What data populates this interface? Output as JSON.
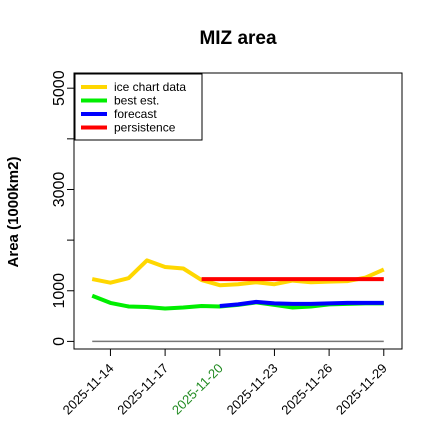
{
  "chart_data": {
    "type": "line",
    "title": "MIZ area",
    "xlabel": "",
    "ylabel": "Area (1000km2)",
    "ylim": [
      -150,
      5300
    ],
    "yticks": [
      0,
      1000,
      3000,
      5000
    ],
    "y_minor_ticks": [
      2000,
      4000
    ],
    "x_start": "2025-11-13",
    "x_dates": [
      "2025-11-13",
      "2025-11-14",
      "2025-11-15",
      "2025-11-16",
      "2025-11-17",
      "2025-11-18",
      "2025-11-19",
      "2025-11-20",
      "2025-11-21",
      "2025-11-22",
      "2025-11-23",
      "2025-11-24",
      "2025-11-25",
      "2025-11-26",
      "2025-11-27",
      "2025-11-28",
      "2025-11-29"
    ],
    "xlim": [
      "2025-11-12",
      "2025-11-30"
    ],
    "xtick_labels": [
      "2025-11-14",
      "2025-11-17",
      "2025-11-20",
      "2025-11-23",
      "2025-11-26",
      "2025-11-29"
    ],
    "highlight_tick": "2025-11-20",
    "highlight_color": "#228b22",
    "grid": false,
    "legend_position": "top-left",
    "baseline": 0,
    "series": [
      {
        "name": "ice chart data",
        "color": "#ffd700",
        "x": [
          "2025-11-13",
          "2025-11-14",
          "2025-11-15",
          "2025-11-16",
          "2025-11-17",
          "2025-11-18",
          "2025-11-19",
          "2025-11-20",
          "2025-11-21",
          "2025-11-22",
          "2025-11-23",
          "2025-11-24",
          "2025-11-25",
          "2025-11-26",
          "2025-11-27",
          "2025-11-28",
          "2025-11-29"
        ],
        "values": [
          1230,
          1160,
          1250,
          1600,
          1470,
          1440,
          1210,
          1110,
          1130,
          1170,
          1130,
          1200,
          1170,
          1180,
          1190,
          1260,
          1420
        ]
      },
      {
        "name": "best est.",
        "color": "#00ee00",
        "x": [
          "2025-11-13",
          "2025-11-14",
          "2025-11-15",
          "2025-11-16",
          "2025-11-17",
          "2025-11-18",
          "2025-11-19",
          "2025-11-20",
          "2025-11-21",
          "2025-11-22",
          "2025-11-23",
          "2025-11-24",
          "2025-11-25",
          "2025-11-26",
          "2025-11-27",
          "2025-11-28",
          "2025-11-29"
        ],
        "values": [
          900,
          760,
          690,
          680,
          650,
          670,
          700,
          690,
          720,
          770,
          720,
          670,
          690,
          730,
          740,
          750,
          750
        ]
      },
      {
        "name": "forecast",
        "color": "#0000ff",
        "x": [
          "2025-11-20",
          "2025-11-21",
          "2025-11-22",
          "2025-11-23",
          "2025-11-24",
          "2025-11-25",
          "2025-11-26",
          "2025-11-27",
          "2025-11-28",
          "2025-11-29"
        ],
        "values": [
          700,
          730,
          780,
          750,
          740,
          740,
          750,
          760,
          760,
          760
        ]
      },
      {
        "name": "persistence",
        "color": "#ff0000",
        "x": [
          "2025-11-19",
          "2025-11-29"
        ],
        "values": [
          1230,
          1230
        ]
      }
    ]
  }
}
